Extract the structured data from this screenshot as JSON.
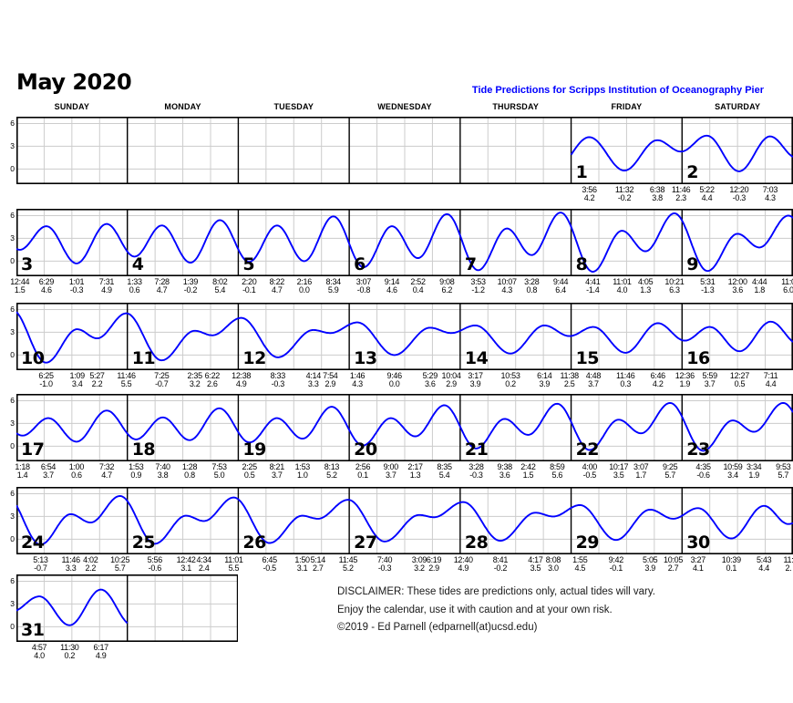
{
  "title": "May 2020",
  "subtitle": "Tide Predictions for Scripps Institution of Oceanography Pier",
  "weekdays": [
    "SUNDAY",
    "MONDAY",
    "TUESDAY",
    "WEDNESDAY",
    "THURSDAY",
    "FRIDAY",
    "SATURDAY"
  ],
  "y_ticks": [
    "6",
    "3",
    "0"
  ],
  "disclaimer": {
    "line1": "DISCLAIMER: These tides are predictions only, actual tides will vary.",
    "line2": "Enjoy the calendar, use it with caution and at your own risk.",
    "line3": "©2019 - Ed Parnell (edparnell(at)ucsd.edu)"
  },
  "colors": {
    "curve": "#0000ff",
    "subtitle": "#0000ff",
    "grid_light": "#cccccc",
    "border": "#000000"
  },
  "chart_data": {
    "type": "line",
    "title": "Tide Predictions for Scripps Institution of Oceanography Pier",
    "ylabel": "",
    "ylim": [
      -2,
      7
    ],
    "y_gridlines": [
      0,
      3,
      6
    ],
    "weeks_span_columns": [
      7,
      7,
      7,
      7,
      7,
      2
    ],
    "days": [
      {
        "day": 1,
        "week": 0,
        "col": 5,
        "tides": [
          {
            "t": "3:56",
            "h": "4.2"
          },
          {
            "t": "11:32",
            "h": "-0.2"
          },
          {
            "t": "6:38",
            "h": "3.8"
          },
          {
            "t": "11:46",
            "h": "2.3"
          }
        ]
      },
      {
        "day": 2,
        "week": 0,
        "col": 6,
        "tides": [
          {
            "t": "5:22",
            "h": "4.4"
          },
          {
            "t": "12:20",
            "h": "-0.3"
          },
          {
            "t": "7:03",
            "h": "4.3"
          }
        ]
      },
      {
        "day": 3,
        "week": 1,
        "col": 0,
        "tides": [
          {
            "t": "12:44",
            "h": "1.5"
          },
          {
            "t": "6:29",
            "h": "4.6"
          },
          {
            "t": "1:01",
            "h": "-0.3"
          },
          {
            "t": "7:31",
            "h": "4.9"
          }
        ]
      },
      {
        "day": 4,
        "week": 1,
        "col": 1,
        "tides": [
          {
            "t": "1:33",
            "h": "0.6"
          },
          {
            "t": "7:28",
            "h": "4.7"
          },
          {
            "t": "1:39",
            "h": "-0.2"
          },
          {
            "t": "8:02",
            "h": "5.4"
          }
        ]
      },
      {
        "day": 5,
        "week": 1,
        "col": 2,
        "tides": [
          {
            "t": "2:20",
            "h": "-0.1"
          },
          {
            "t": "8:22",
            "h": "4.7"
          },
          {
            "t": "2:16",
            "h": "0.0"
          },
          {
            "t": "8:34",
            "h": "5.9"
          }
        ]
      },
      {
        "day": 6,
        "week": 1,
        "col": 3,
        "tides": [
          {
            "t": "3:07",
            "h": "-0.8"
          },
          {
            "t": "9:14",
            "h": "4.6"
          },
          {
            "t": "2:52",
            "h": "0.4"
          },
          {
            "t": "9:08",
            "h": "6.2"
          }
        ]
      },
      {
        "day": 7,
        "week": 1,
        "col": 4,
        "tides": [
          {
            "t": "3:53",
            "h": "-1.2"
          },
          {
            "t": "10:07",
            "h": "4.3"
          },
          {
            "t": "3:28",
            "h": "0.8"
          },
          {
            "t": "9:44",
            "h": "6.4"
          }
        ]
      },
      {
        "day": 8,
        "week": 1,
        "col": 5,
        "tides": [
          {
            "t": "4:41",
            "h": "-1.4"
          },
          {
            "t": "11:01",
            "h": "4.0"
          },
          {
            "t": "4:05",
            "h": "1.3"
          },
          {
            "t": "10:21",
            "h": "6.3"
          }
        ]
      },
      {
        "day": 9,
        "week": 1,
        "col": 6,
        "tides": [
          {
            "t": "5:31",
            "h": "-1.3"
          },
          {
            "t": "12:00",
            "h": "3.6"
          },
          {
            "t": "4:44",
            "h": "1.8"
          },
          {
            "t": "11:0",
            "h": "6.0"
          }
        ]
      },
      {
        "day": 10,
        "week": 2,
        "col": 0,
        "tides": [
          {
            "t": "6:25",
            "h": "-1.0"
          },
          {
            "t": "1:09",
            "h": "3.4"
          },
          {
            "t": "5:27",
            "h": "2.2"
          },
          {
            "t": "11:46",
            "h": "5.5"
          }
        ]
      },
      {
        "day": 11,
        "week": 2,
        "col": 1,
        "tides": [
          {
            "t": "7:25",
            "h": "-0.7"
          },
          {
            "t": "2:35",
            "h": "3.2"
          },
          {
            "t": "6:22",
            "h": "2.6"
          }
        ]
      },
      {
        "day": 12,
        "week": 2,
        "col": 2,
        "tides": [
          {
            "t": "12:38",
            "h": "4.9"
          },
          {
            "t": "8:33",
            "h": "-0.3"
          },
          {
            "t": "4:14",
            "h": "3.3"
          },
          {
            "t": "7:54",
            "h": "2.9"
          }
        ]
      },
      {
        "day": 13,
        "week": 2,
        "col": 3,
        "tides": [
          {
            "t": "1:46",
            "h": "4.3"
          },
          {
            "t": "9:46",
            "h": "0.0"
          },
          {
            "t": "5:29",
            "h": "3.6"
          },
          {
            "t": "10:04",
            "h": "2.9"
          }
        ]
      },
      {
        "day": 14,
        "week": 2,
        "col": 4,
        "tides": [
          {
            "t": "3:17",
            "h": "3.9"
          },
          {
            "t": "10:53",
            "h": "0.2"
          },
          {
            "t": "6:14",
            "h": "3.9"
          },
          {
            "t": "11:38",
            "h": "2.5"
          }
        ]
      },
      {
        "day": 15,
        "week": 2,
        "col": 5,
        "tides": [
          {
            "t": "4:48",
            "h": "3.7"
          },
          {
            "t": "11:46",
            "h": "0.3"
          },
          {
            "t": "6:46",
            "h": "4.2"
          }
        ]
      },
      {
        "day": 16,
        "week": 2,
        "col": 6,
        "tides": [
          {
            "t": "12:36",
            "h": "1.9"
          },
          {
            "t": "5:59",
            "h": "3.7"
          },
          {
            "t": "12:27",
            "h": "0.5"
          },
          {
            "t": "7:11",
            "h": "4.4"
          }
        ]
      },
      {
        "day": 17,
        "week": 3,
        "col": 0,
        "tides": [
          {
            "t": "1:18",
            "h": "1.4"
          },
          {
            "t": "6:54",
            "h": "3.7"
          },
          {
            "t": "1:00",
            "h": "0.6"
          },
          {
            "t": "7:32",
            "h": "4.7"
          }
        ]
      },
      {
        "day": 18,
        "week": 3,
        "col": 1,
        "tides": [
          {
            "t": "1:53",
            "h": "0.9"
          },
          {
            "t": "7:40",
            "h": "3.8"
          },
          {
            "t": "1:28",
            "h": "0.8"
          },
          {
            "t": "7:53",
            "h": "5.0"
          }
        ]
      },
      {
        "day": 19,
        "week": 3,
        "col": 2,
        "tides": [
          {
            "t": "2:25",
            "h": "0.5"
          },
          {
            "t": "8:21",
            "h": "3.7"
          },
          {
            "t": "1:53",
            "h": "1.0"
          },
          {
            "t": "8:13",
            "h": "5.2"
          }
        ]
      },
      {
        "day": 20,
        "week": 3,
        "col": 3,
        "tides": [
          {
            "t": "2:56",
            "h": "0.1"
          },
          {
            "t": "9:00",
            "h": "3.7"
          },
          {
            "t": "2:17",
            "h": "1.3"
          },
          {
            "t": "8:35",
            "h": "5.4"
          }
        ]
      },
      {
        "day": 21,
        "week": 3,
        "col": 4,
        "tides": [
          {
            "t": "3:28",
            "h": "-0.3"
          },
          {
            "t": "9:38",
            "h": "3.6"
          },
          {
            "t": "2:42",
            "h": "1.5"
          },
          {
            "t": "8:59",
            "h": "5.6"
          }
        ]
      },
      {
        "day": 22,
        "week": 3,
        "col": 5,
        "tides": [
          {
            "t": "4:00",
            "h": "-0.5"
          },
          {
            "t": "10:17",
            "h": "3.5"
          },
          {
            "t": "3:07",
            "h": "1.7"
          },
          {
            "t": "9:25",
            "h": "5.7"
          }
        ]
      },
      {
        "day": 23,
        "week": 3,
        "col": 6,
        "tides": [
          {
            "t": "4:35",
            "h": "-0.6"
          },
          {
            "t": "10:59",
            "h": "3.4"
          },
          {
            "t": "3:34",
            "h": "1.9"
          },
          {
            "t": "9:53",
            "h": "5.7"
          }
        ]
      },
      {
        "day": 24,
        "week": 4,
        "col": 0,
        "tides": [
          {
            "t": "5:13",
            "h": "-0.7"
          },
          {
            "t": "11:46",
            "h": "3.3"
          },
          {
            "t": "4:02",
            "h": "2.2"
          },
          {
            "t": "10:25",
            "h": "5.7"
          }
        ]
      },
      {
        "day": 25,
        "week": 4,
        "col": 1,
        "tides": [
          {
            "t": "5:56",
            "h": "-0.6"
          },
          {
            "t": "12:42",
            "h": "3.1"
          },
          {
            "t": "4:34",
            "h": "2.4"
          },
          {
            "t": "11:01",
            "h": "5.5"
          }
        ]
      },
      {
        "day": 26,
        "week": 4,
        "col": 2,
        "tides": [
          {
            "t": "6:45",
            "h": "-0.5"
          },
          {
            "t": "1:50",
            "h": "3.1"
          },
          {
            "t": "5:14",
            "h": "2.7"
          },
          {
            "t": "11:45",
            "h": "5.2"
          }
        ]
      },
      {
        "day": 27,
        "week": 4,
        "col": 3,
        "tides": [
          {
            "t": "7:40",
            "h": "-0.3"
          },
          {
            "t": "3:09",
            "h": "3.2"
          },
          {
            "t": "6:19",
            "h": "2.9"
          }
        ]
      },
      {
        "day": 28,
        "week": 4,
        "col": 4,
        "tides": [
          {
            "t": "12:40",
            "h": "4.9"
          },
          {
            "t": "8:41",
            "h": "-0.2"
          },
          {
            "t": "4:17",
            "h": "3.5"
          },
          {
            "t": "8:08",
            "h": "3.0"
          }
        ]
      },
      {
        "day": 29,
        "week": 4,
        "col": 5,
        "tides": [
          {
            "t": "1:55",
            "h": "4.5"
          },
          {
            "t": "9:42",
            "h": "-0.1"
          },
          {
            "t": "5:05",
            "h": "3.9"
          },
          {
            "t": "10:05",
            "h": "2.7"
          }
        ]
      },
      {
        "day": 30,
        "week": 4,
        "col": 6,
        "tides": [
          {
            "t": "3:27",
            "h": "4.1"
          },
          {
            "t": "10:39",
            "h": "0.1"
          },
          {
            "t": "5:43",
            "h": "4.4"
          },
          {
            "t": "11:",
            "h": "2."
          }
        ]
      },
      {
        "day": 31,
        "week": 5,
        "col": 0,
        "tides": [
          {
            "t": "4:57",
            "h": "4.0"
          },
          {
            "t": "11:30",
            "h": "0.2"
          },
          {
            "t": "6:17",
            "h": "4.9"
          }
        ]
      }
    ]
  }
}
